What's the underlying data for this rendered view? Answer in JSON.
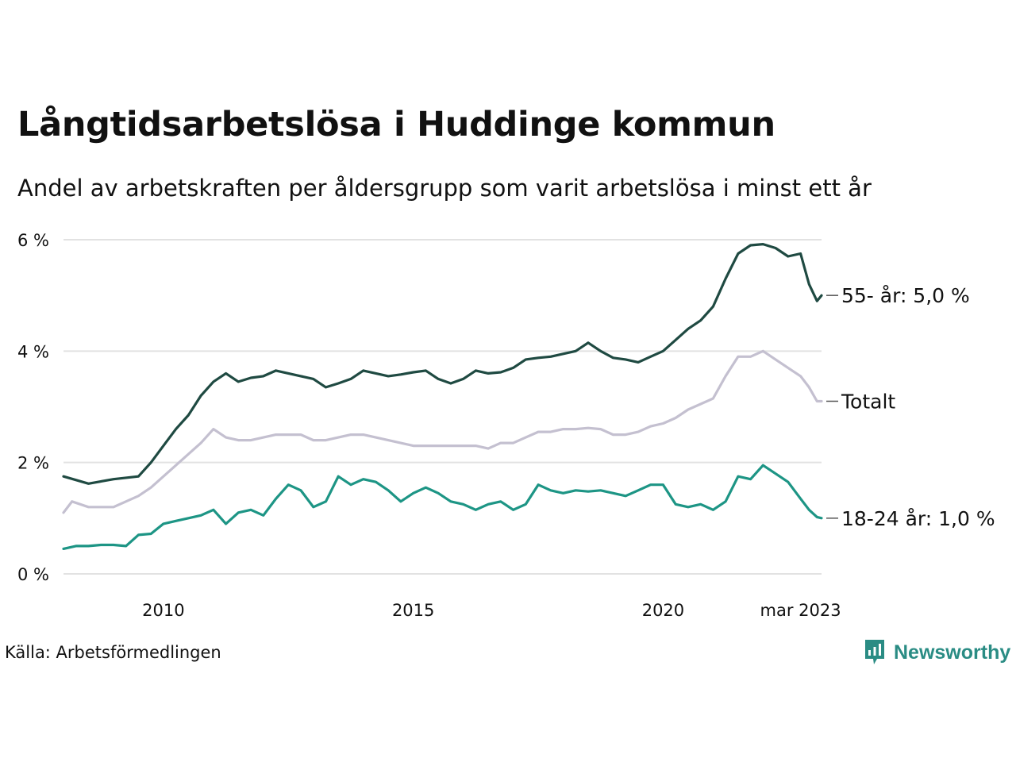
{
  "title": "Långtidsarbetslösa i Huddinge kommun",
  "subtitle": "Andel av arbetskraften per åldersgrupp som varit arbetslösa i minst ett år",
  "source": "Källa: Arbetsförmedlingen",
  "brand": "Newsworthy",
  "colors": {
    "series_55": "#1f4a42",
    "series_total": "#c4c0d0",
    "series_18_24": "#1d9585",
    "grid": "#e2e2e2",
    "brand": "#2a8c84"
  },
  "chart_data": {
    "type": "line",
    "ylim": [
      0,
      6
    ],
    "yticks": [
      0,
      2,
      4,
      6
    ],
    "ytick_labels": [
      "0 %",
      "2 %",
      "4 %",
      "6 %"
    ],
    "xlim": [
      2008.0,
      2023.17
    ],
    "xticks": [
      2010,
      2015,
      2020,
      2022.75
    ],
    "xtick_labels": [
      "2010",
      "2015",
      "2020",
      "mar 2023"
    ],
    "grid": true,
    "series": [
      {
        "key": "series_55",
        "name": "55- år",
        "end_label": "55- år: 5,0 %",
        "points": [
          [
            2008.0,
            1.75
          ],
          [
            2008.5,
            1.62
          ],
          [
            2009.0,
            1.7
          ],
          [
            2009.5,
            1.75
          ],
          [
            2009.75,
            2.0
          ],
          [
            2010.0,
            2.3
          ],
          [
            2010.25,
            2.6
          ],
          [
            2010.5,
            2.85
          ],
          [
            2010.75,
            3.2
          ],
          [
            2011.0,
            3.45
          ],
          [
            2011.25,
            3.6
          ],
          [
            2011.5,
            3.45
          ],
          [
            2011.75,
            3.52
          ],
          [
            2012.0,
            3.55
          ],
          [
            2012.25,
            3.65
          ],
          [
            2012.5,
            3.6
          ],
          [
            2012.75,
            3.55
          ],
          [
            2013.0,
            3.5
          ],
          [
            2013.25,
            3.35
          ],
          [
            2013.5,
            3.42
          ],
          [
            2013.75,
            3.5
          ],
          [
            2014.0,
            3.65
          ],
          [
            2014.25,
            3.6
          ],
          [
            2014.5,
            3.55
          ],
          [
            2014.75,
            3.58
          ],
          [
            2015.0,
            3.62
          ],
          [
            2015.25,
            3.65
          ],
          [
            2015.5,
            3.5
          ],
          [
            2015.75,
            3.42
          ],
          [
            2016.0,
            3.5
          ],
          [
            2016.25,
            3.65
          ],
          [
            2016.5,
            3.6
          ],
          [
            2016.75,
            3.62
          ],
          [
            2017.0,
            3.7
          ],
          [
            2017.25,
            3.85
          ],
          [
            2017.5,
            3.88
          ],
          [
            2017.75,
            3.9
          ],
          [
            2018.0,
            3.95
          ],
          [
            2018.25,
            4.0
          ],
          [
            2018.5,
            4.15
          ],
          [
            2018.75,
            4.0
          ],
          [
            2019.0,
            3.88
          ],
          [
            2019.25,
            3.85
          ],
          [
            2019.5,
            3.8
          ],
          [
            2019.75,
            3.9
          ],
          [
            2020.0,
            4.0
          ],
          [
            2020.25,
            4.2
          ],
          [
            2020.5,
            4.4
          ],
          [
            2020.75,
            4.55
          ],
          [
            2021.0,
            4.8
          ],
          [
            2021.25,
            5.3
          ],
          [
            2021.5,
            5.75
          ],
          [
            2021.75,
            5.9
          ],
          [
            2022.0,
            5.92
          ],
          [
            2022.25,
            5.85
          ],
          [
            2022.5,
            5.7
          ],
          [
            2022.75,
            5.75
          ],
          [
            2022.92,
            5.2
          ],
          [
            2023.08,
            4.9
          ],
          [
            2023.17,
            5.0
          ]
        ]
      },
      {
        "key": "series_total",
        "name": "Totalt",
        "end_label": "Totalt",
        "points": [
          [
            2008.0,
            1.1
          ],
          [
            2008.17,
            1.3
          ],
          [
            2008.5,
            1.2
          ],
          [
            2009.0,
            1.2
          ],
          [
            2009.25,
            1.3
          ],
          [
            2009.5,
            1.4
          ],
          [
            2009.75,
            1.55
          ],
          [
            2010.0,
            1.75
          ],
          [
            2010.25,
            1.95
          ],
          [
            2010.5,
            2.15
          ],
          [
            2010.75,
            2.35
          ],
          [
            2011.0,
            2.6
          ],
          [
            2011.25,
            2.45
          ],
          [
            2011.5,
            2.4
          ],
          [
            2011.75,
            2.4
          ],
          [
            2012.0,
            2.45
          ],
          [
            2012.25,
            2.5
          ],
          [
            2012.5,
            2.5
          ],
          [
            2012.75,
            2.5
          ],
          [
            2013.0,
            2.4
          ],
          [
            2013.25,
            2.4
          ],
          [
            2013.5,
            2.45
          ],
          [
            2013.75,
            2.5
          ],
          [
            2014.0,
            2.5
          ],
          [
            2014.25,
            2.45
          ],
          [
            2014.5,
            2.4
          ],
          [
            2014.75,
            2.35
          ],
          [
            2015.0,
            2.3
          ],
          [
            2015.5,
            2.3
          ],
          [
            2015.9,
            2.3
          ],
          [
            2016.25,
            2.3
          ],
          [
            2016.5,
            2.25
          ],
          [
            2016.75,
            2.35
          ],
          [
            2017.0,
            2.35
          ],
          [
            2017.25,
            2.45
          ],
          [
            2017.5,
            2.55
          ],
          [
            2017.75,
            2.55
          ],
          [
            2018.0,
            2.6
          ],
          [
            2018.25,
            2.6
          ],
          [
            2018.5,
            2.62
          ],
          [
            2018.75,
            2.6
          ],
          [
            2019.0,
            2.5
          ],
          [
            2019.25,
            2.5
          ],
          [
            2019.5,
            2.55
          ],
          [
            2019.75,
            2.65
          ],
          [
            2020.0,
            2.7
          ],
          [
            2020.25,
            2.8
          ],
          [
            2020.5,
            2.95
          ],
          [
            2020.75,
            3.05
          ],
          [
            2021.0,
            3.15
          ],
          [
            2021.25,
            3.55
          ],
          [
            2021.5,
            3.9
          ],
          [
            2021.75,
            3.9
          ],
          [
            2022.0,
            4.0
          ],
          [
            2022.25,
            3.85
          ],
          [
            2022.5,
            3.7
          ],
          [
            2022.75,
            3.55
          ],
          [
            2022.92,
            3.35
          ],
          [
            2023.08,
            3.1
          ],
          [
            2023.17,
            3.1
          ]
        ]
      },
      {
        "key": "series_18_24",
        "name": "18-24 år",
        "end_label": "18-24 år: 1,0 %",
        "points": [
          [
            2008.0,
            0.45
          ],
          [
            2008.25,
            0.5
          ],
          [
            2008.5,
            0.5
          ],
          [
            2008.75,
            0.52
          ],
          [
            2009.0,
            0.52
          ],
          [
            2009.25,
            0.5
          ],
          [
            2009.5,
            0.7
          ],
          [
            2009.75,
            0.72
          ],
          [
            2010.0,
            0.9
          ],
          [
            2010.25,
            0.95
          ],
          [
            2010.5,
            1.0
          ],
          [
            2010.75,
            1.05
          ],
          [
            2011.0,
            1.15
          ],
          [
            2011.25,
            0.9
          ],
          [
            2011.5,
            1.1
          ],
          [
            2011.75,
            1.15
          ],
          [
            2012.0,
            1.05
          ],
          [
            2012.25,
            1.35
          ],
          [
            2012.5,
            1.6
          ],
          [
            2012.75,
            1.5
          ],
          [
            2013.0,
            1.2
          ],
          [
            2013.25,
            1.3
          ],
          [
            2013.5,
            1.75
          ],
          [
            2013.75,
            1.6
          ],
          [
            2014.0,
            1.7
          ],
          [
            2014.25,
            1.65
          ],
          [
            2014.5,
            1.5
          ],
          [
            2014.75,
            1.3
          ],
          [
            2015.0,
            1.45
          ],
          [
            2015.25,
            1.55
          ],
          [
            2015.5,
            1.45
          ],
          [
            2015.75,
            1.3
          ],
          [
            2016.0,
            1.25
          ],
          [
            2016.25,
            1.15
          ],
          [
            2016.5,
            1.25
          ],
          [
            2016.75,
            1.3
          ],
          [
            2017.0,
            1.15
          ],
          [
            2017.25,
            1.25
          ],
          [
            2017.5,
            1.6
          ],
          [
            2017.75,
            1.5
          ],
          [
            2018.0,
            1.45
          ],
          [
            2018.25,
            1.5
          ],
          [
            2018.5,
            1.48
          ],
          [
            2018.75,
            1.5
          ],
          [
            2019.0,
            1.45
          ],
          [
            2019.25,
            1.4
          ],
          [
            2019.5,
            1.5
          ],
          [
            2019.75,
            1.6
          ],
          [
            2020.0,
            1.6
          ],
          [
            2020.25,
            1.25
          ],
          [
            2020.5,
            1.2
          ],
          [
            2020.75,
            1.25
          ],
          [
            2021.0,
            1.15
          ],
          [
            2021.25,
            1.3
          ],
          [
            2021.5,
            1.75
          ],
          [
            2021.75,
            1.7
          ],
          [
            2022.0,
            1.95
          ],
          [
            2022.25,
            1.8
          ],
          [
            2022.5,
            1.65
          ],
          [
            2022.75,
            1.35
          ],
          [
            2022.92,
            1.15
          ],
          [
            2023.08,
            1.02
          ],
          [
            2023.17,
            1.0
          ]
        ]
      }
    ]
  }
}
